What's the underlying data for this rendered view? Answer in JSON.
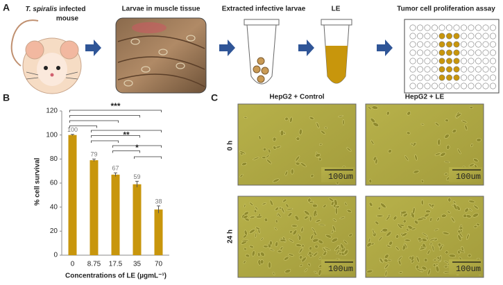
{
  "panel_a": {
    "label": "A",
    "steps": [
      {
        "label_italic": "T. spiralis",
        "label": [
          "infected",
          "mouse"
        ]
      },
      {
        "label": [
          "Larvae in muscle tissue"
        ]
      },
      {
        "label": [
          "Extracted infective larvae"
        ]
      },
      {
        "label": [
          "LE"
        ]
      },
      {
        "label": [
          "Tumor cell proliferation assay"
        ]
      }
    ]
  },
  "chart_data": {
    "type": "bar",
    "panel_label": "B",
    "ylabel": "% cell survival",
    "xlabel": "Concentrations of LE (µgmL⁻¹)",
    "categories": [
      "0",
      "8.75",
      "17.5",
      "35",
      "70"
    ],
    "values": [
      100,
      79,
      67,
      59,
      38
    ],
    "errors": [
      0.5,
      1,
      1.5,
      2.5,
      3
    ],
    "color": "#c8960c",
    "ylim": [
      0,
      120
    ],
    "yticks": [
      0,
      20,
      40,
      60,
      80,
      100,
      120
    ],
    "annotations": [
      "***",
      "**",
      "*"
    ]
  },
  "panel_c": {
    "label": "C",
    "columns": [
      "HepG2 + Control",
      "HepG2 + LE"
    ],
    "rows": [
      "0 h",
      "24 h"
    ],
    "scale_bars": [
      "100um",
      "100um",
      "100um",
      "100um"
    ]
  }
}
